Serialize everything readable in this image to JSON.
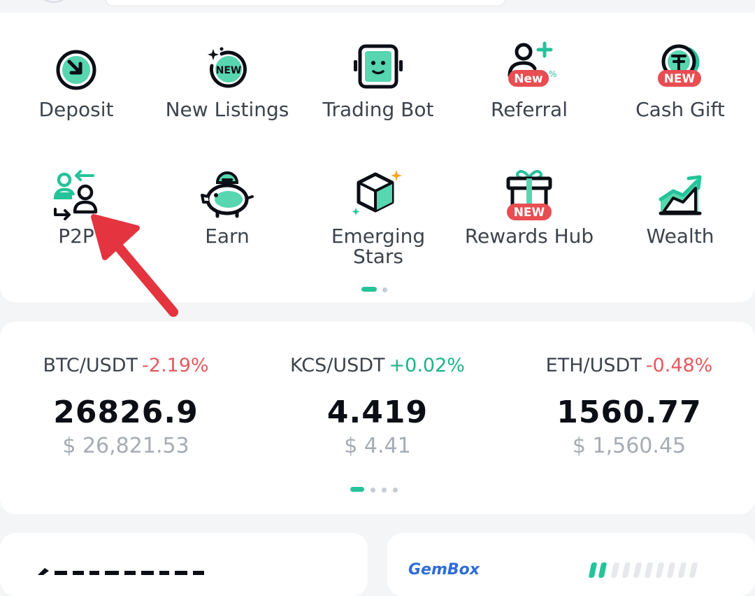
{
  "menu": {
    "row1": [
      {
        "label": "Deposit",
        "icon": "deposit-icon"
      },
      {
        "label": "New Listings",
        "icon": "new-listings-icon",
        "badge": "NEW"
      },
      {
        "label": "Trading Bot",
        "icon": "trading-bot-icon"
      },
      {
        "label": "Referral",
        "icon": "referral-icon",
        "badge": "New"
      },
      {
        "label": "Cash Gift",
        "icon": "cash-gift-icon",
        "badge": "NEW"
      }
    ],
    "row2": [
      {
        "label": "P2P",
        "icon": "p2p-icon"
      },
      {
        "label": "Earn",
        "icon": "piggy-bank-icon"
      },
      {
        "label": "Emerging\nStars",
        "line1": "Emerging",
        "line2": "Stars",
        "icon": "cube-icon"
      },
      {
        "label": "Rewards Hub",
        "icon": "gift-box-icon",
        "badge": "NEW"
      },
      {
        "label": "Wealth",
        "icon": "chart-growth-icon"
      }
    ],
    "page_indicator": {
      "current": 1,
      "total": 2
    }
  },
  "tickers": [
    {
      "pair": "BTC/USDT",
      "change": "-2.19%",
      "direction": "down",
      "price": "26826.9",
      "usd": "$ 26,821.53"
    },
    {
      "pair": "KCS/USDT",
      "change": "+0.02%",
      "direction": "up",
      "price": "4.419",
      "usd": "$ 4.41"
    },
    {
      "pair": "ETH/USDT",
      "change": "-0.48%",
      "direction": "down",
      "price": "1560.77",
      "usd": "$ 1,560.45"
    }
  ],
  "ticker_page_indicator": {
    "current": 1,
    "total": 4
  },
  "bottom": {
    "right_card_title": "GemBox"
  },
  "colors": {
    "accent": "#25c39a",
    "down": "#e4595e",
    "up": "#1fb387",
    "badge": "#e84d52",
    "annotation": "#e3343f"
  }
}
